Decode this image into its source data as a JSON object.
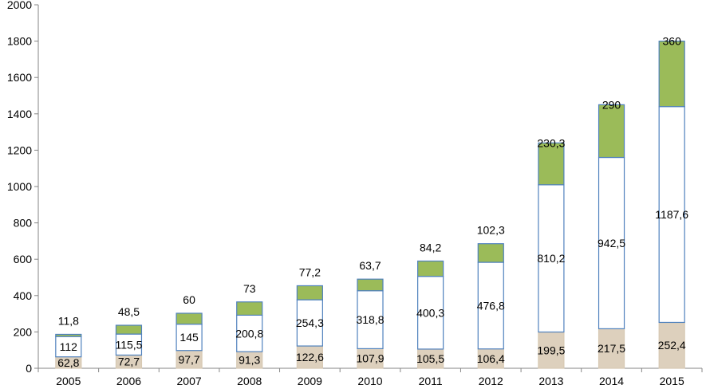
{
  "chart_data": {
    "type": "bar",
    "stacked": true,
    "categories": [
      "2005",
      "2006",
      "2007",
      "2008",
      "2009",
      "2010",
      "2011",
      "2012",
      "2013",
      "2014",
      "2015"
    ],
    "series": [
      {
        "values": [
          62.8,
          72.7,
          97.7,
          91.3,
          122.6,
          107.9,
          105.5,
          106.4,
          199.5,
          217.5,
          252.4
        ],
        "labels": [
          "62,8",
          "72,7",
          "97,7",
          "91,3",
          "122,6",
          "107,9",
          "105,5",
          "106,4",
          "199,5",
          "217,5",
          "252,4"
        ],
        "color": "#ddd0bd",
        "stroke": "#d7c9b3"
      },
      {
        "values": [
          112,
          115.5,
          145,
          200.8,
          254.3,
          318.8,
          400.3,
          476.8,
          810.2,
          942.5,
          1187.6
        ],
        "labels": [
          "112",
          "115,5",
          "145",
          "200,8",
          "254,3",
          "318,8",
          "400,3",
          "476,8",
          "810,2",
          "942,5",
          "1187,6"
        ],
        "color": "#ffffff",
        "stroke": "#4f81bd"
      },
      {
        "values": [
          11.8,
          48.5,
          60,
          73,
          77.2,
          63.7,
          84.2,
          102.3,
          230.3,
          290,
          360
        ],
        "labels": [
          "11,8",
          "48,5",
          "60",
          "73",
          "77,2",
          "63,7",
          "84,2",
          "102,3",
          "230,3",
          "290",
          "360"
        ],
        "color": "#9bbb59",
        "stroke": "#4f81bd"
      }
    ],
    "ylim": [
      0,
      2000
    ],
    "yticks": [
      0,
      200,
      400,
      600,
      800,
      1000,
      1200,
      1400,
      1600,
      1800,
      2000
    ],
    "grid": false,
    "legend": "none",
    "title": "",
    "xlabel": "",
    "ylabel": ""
  }
}
